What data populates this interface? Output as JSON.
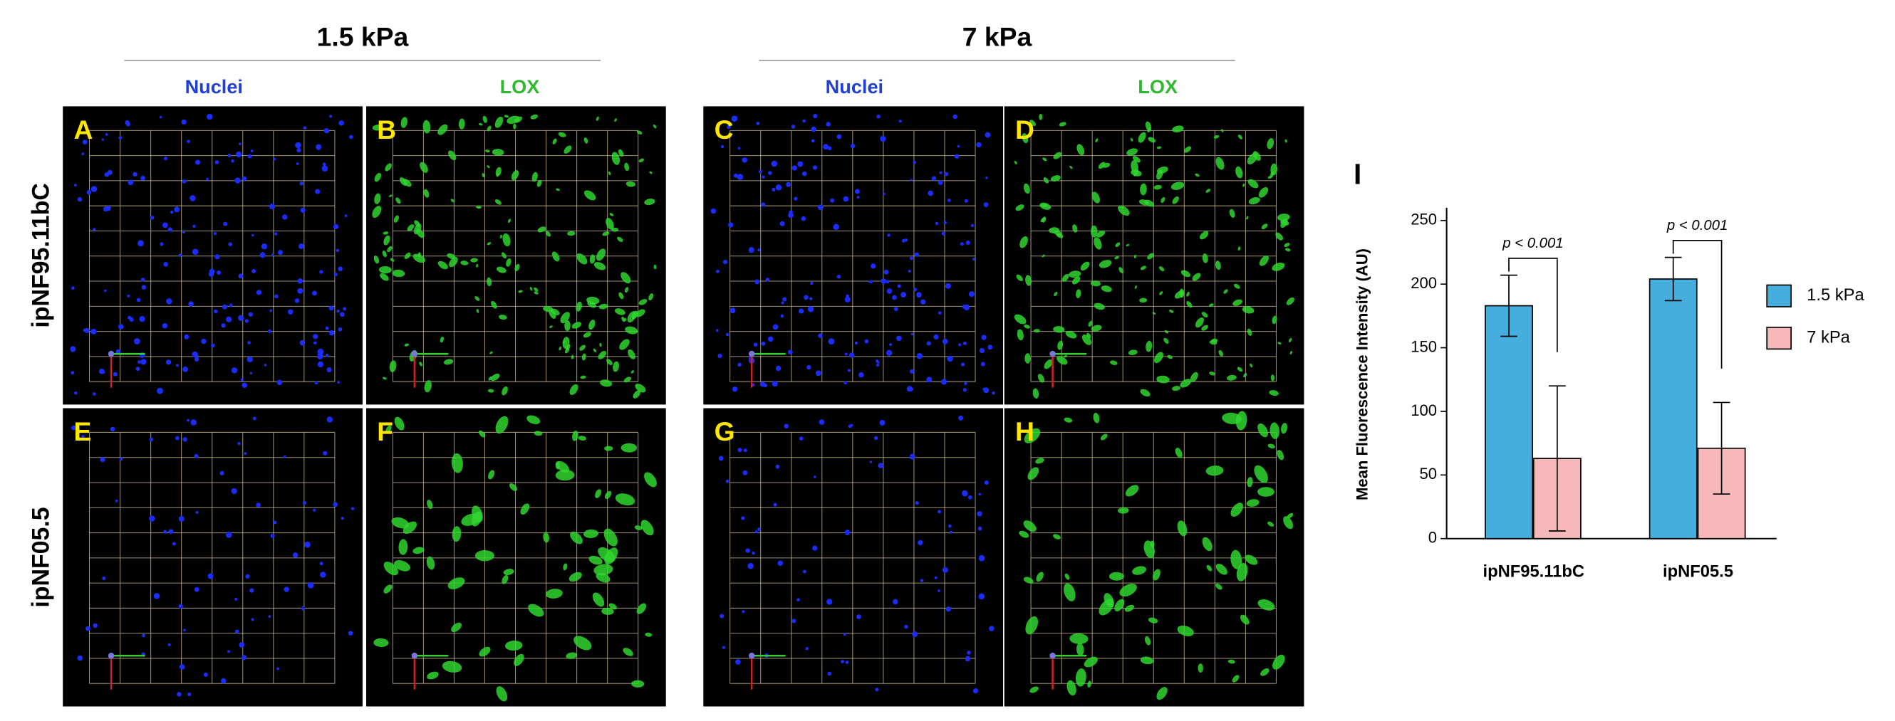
{
  "header": {
    "groups": [
      "1.5 kPa",
      "7 kPa"
    ],
    "channels": [
      "Nuclei",
      "LOX",
      "Nuclei",
      "LOX"
    ],
    "rows": [
      "ipNF95.11bC",
      "ipNF05.5"
    ],
    "panels": [
      "A",
      "B",
      "C",
      "D",
      "E",
      "F",
      "G",
      "H"
    ]
  },
  "chart_data": {
    "type": "bar",
    "panel_label": "I",
    "ylabel": "Mean Fluorescence Intensity (AU)",
    "categories": [
      "ipNF95.11bC",
      "ipNF05.5"
    ],
    "series": [
      {
        "name": "1.5 kPa",
        "color": "#45aedc",
        "values": [
          183,
          204
        ],
        "errors": [
          24,
          17
        ]
      },
      {
        "name": "7 kPa",
        "color": "#f6b8b8",
        "values": [
          63,
          71
        ],
        "errors": [
          57,
          36
        ]
      }
    ],
    "ylim": [
      0,
      260
    ],
    "yticks": [
      0,
      50,
      100,
      150,
      200,
      250
    ],
    "annotations": [
      "p < 0.001",
      "p < 0.001"
    ],
    "legend": "right"
  }
}
